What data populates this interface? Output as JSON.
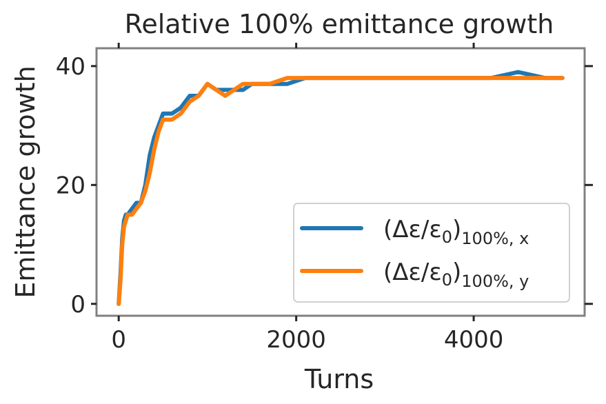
{
  "chart_data": {
    "type": "line",
    "title": "Relative 100% emittance growth",
    "xlabel": "Turns",
    "ylabel": "Emittance growth",
    "xlim": [
      -250,
      5250
    ],
    "ylim": [
      -2,
      43
    ],
    "xticks": [
      0,
      2000,
      4000
    ],
    "yticks": [
      0,
      20,
      40
    ],
    "xtick_labels": [
      "0",
      "2000",
      "4000"
    ],
    "ytick_labels": [
      "0",
      "20",
      "40"
    ],
    "grid": false,
    "legend_position": "lower-right",
    "series": [
      {
        "name": "(Δε/ε0)100%, x",
        "legend_main": "(Δε/ε",
        "legend_sub0": "0",
        "legend_close": ")",
        "legend_sub": "100%, x",
        "color": "#1f77b4",
        "x": [
          0,
          20,
          40,
          60,
          80,
          100,
          150,
          200,
          250,
          300,
          350,
          400,
          450,
          500,
          600,
          700,
          800,
          900,
          1000,
          1100,
          1200,
          1300,
          1400,
          1500,
          1700,
          1900,
          2100,
          2300,
          2500,
          2800,
          3000,
          3200,
          3500,
          3800,
          4000,
          4200,
          4500,
          4800,
          5000
        ],
        "y": [
          0,
          5,
          11,
          14,
          15,
          15,
          16,
          17,
          17,
          20,
          25,
          28,
          30,
          32,
          32,
          33,
          35,
          35,
          37,
          36,
          36,
          36,
          36,
          37,
          37,
          37,
          38,
          38,
          38,
          38,
          38,
          38,
          38,
          38,
          38,
          38,
          39,
          38,
          38
        ]
      },
      {
        "name": "(Δε/ε0)100%, y",
        "legend_main": "(Δε/ε",
        "legend_sub0": "0",
        "legend_close": ")",
        "legend_sub": "100%, y",
        "color": "#ff7f0e",
        "x": [
          0,
          20,
          40,
          60,
          80,
          100,
          150,
          200,
          250,
          300,
          350,
          400,
          450,
          500,
          600,
          700,
          800,
          900,
          1000,
          1100,
          1200,
          1300,
          1400,
          1500,
          1700,
          1900,
          2100,
          2300,
          2500,
          2800,
          3000,
          3200,
          3500,
          3800,
          4000,
          4200,
          4500,
          4800,
          5000
        ],
        "y": [
          0,
          4,
          10,
          13,
          14,
          15,
          15,
          16,
          17,
          19,
          22,
          26,
          29,
          31,
          31,
          32,
          34,
          35,
          37,
          36,
          35,
          36,
          37,
          37,
          37,
          38,
          38,
          38,
          38,
          38,
          38,
          38,
          38,
          38,
          38,
          38,
          38,
          38,
          38
        ]
      }
    ]
  }
}
